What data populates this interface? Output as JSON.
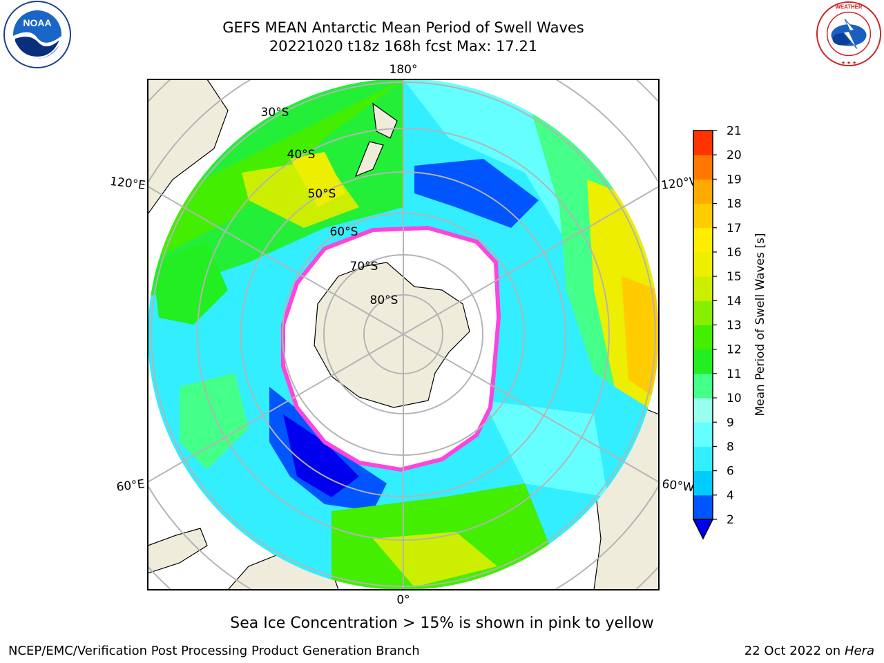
{
  "header": {
    "title_line1": "GEFS MEAN Antarctic Mean Period of Swell Waves",
    "title_line2": "20221020 t18z 168h fcst   Max: 17.21"
  },
  "logos": {
    "left": "NOAA",
    "right": "NATIONAL WEATHER SERVICE"
  },
  "map": {
    "projection": "south-polar-stereographic",
    "longitude_labels": [
      "180°",
      "120°E",
      "120°W",
      "60°E",
      "60°W",
      "0°"
    ],
    "latitude_labels": [
      "30°S",
      "40°S",
      "50°S",
      "60°S",
      "70°S",
      "80°S"
    ],
    "colors": {
      "land": "#efecdc",
      "ice_edge": "#ff44dd",
      "grid": "#b4b4b4"
    }
  },
  "colorbar": {
    "label": "Mean Period of Swell Waves [s]",
    "ticks": [
      "2",
      "4",
      "6",
      "8",
      "9",
      "10",
      "11",
      "12",
      "13",
      "14",
      "15",
      "16",
      "17",
      "18",
      "19",
      "20",
      "21"
    ],
    "colors": [
      "#0055ff",
      "#00ccff",
      "#33eeff",
      "#66ffff",
      "#99ffee",
      "#44ff88",
      "#22ee22",
      "#44ee00",
      "#88ee00",
      "#ccee00",
      "#eeee00",
      "#ffee00",
      "#ffcc00",
      "#ffaa00",
      "#ff7700",
      "#ff3300",
      "#ff0000"
    ],
    "under_color": "#0000ee"
  },
  "note": "Sea Ice Concentration > 15% is shown in pink to yellow",
  "footer": {
    "left": "NCEP/EMC/Verification Post Processing Product Generation Branch",
    "right_date": "22 Oct 2022 on",
    "right_machine": "Hera"
  }
}
